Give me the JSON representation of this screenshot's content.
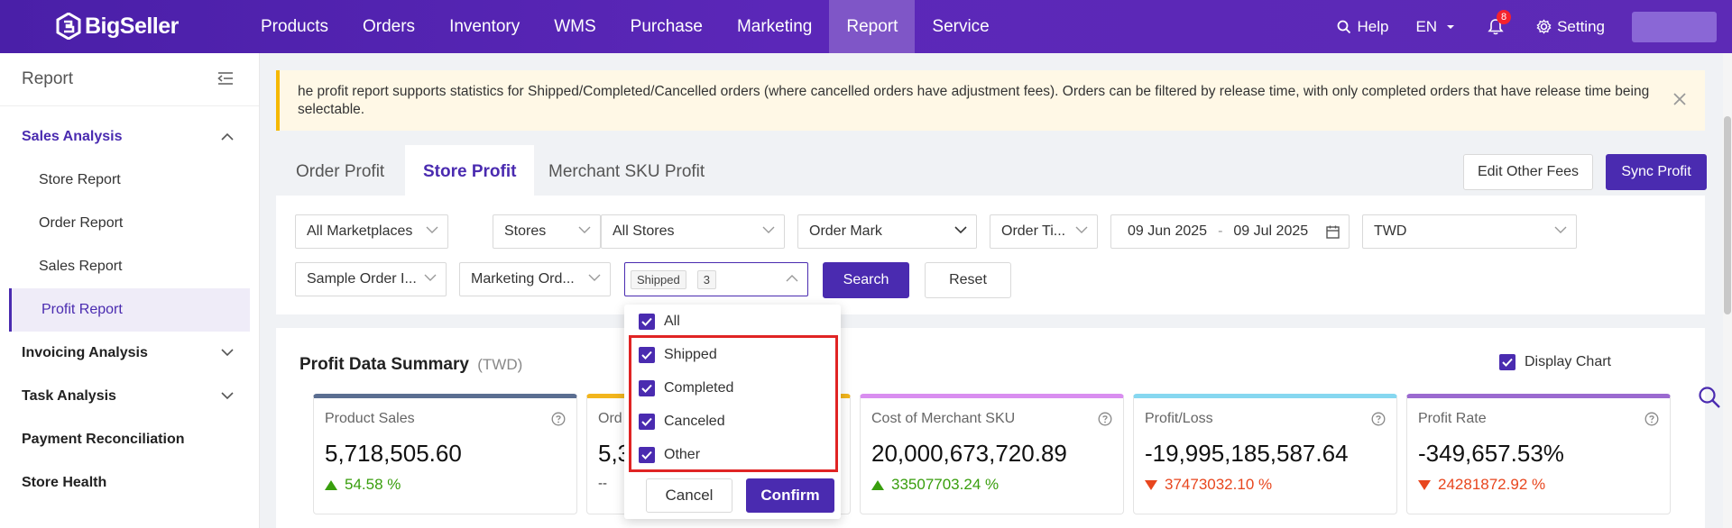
{
  "header": {
    "logo_text": "BigSeller",
    "nav": [
      {
        "label": "Products"
      },
      {
        "label": "Orders"
      },
      {
        "label": "Inventory"
      },
      {
        "label": "WMS"
      },
      {
        "label": "Purchase"
      },
      {
        "label": "Marketing"
      },
      {
        "label": "Report",
        "active": true
      },
      {
        "label": "Service"
      }
    ],
    "help_label": "Help",
    "lang_label": "EN",
    "notif_count": "8",
    "setting_label": "Setting"
  },
  "sidebar": {
    "title": "Report",
    "sales_group": "Sales Analysis",
    "sales_items": [
      "Store Report",
      "Order Report",
      "Sales Report",
      "Profit Report"
    ],
    "groups": [
      "Invoicing Analysis",
      "Task Analysis",
      "Payment Reconciliation",
      "Store Health"
    ]
  },
  "alert": {
    "text": "he profit report supports statistics for Shipped/Completed/Cancelled orders (where cancelled orders have adjustment fees). Orders can be filtered by release time, with only completed orders that have release time being selectable."
  },
  "tabs": [
    "Order Profit",
    "Store Profit",
    "Merchant SKU Profit"
  ],
  "actions": {
    "edit_fees": "Edit Other Fees",
    "sync_profit": "Sync Profit"
  },
  "filters": {
    "marketplaces": "All Marketplaces",
    "stores_type": "Stores",
    "stores": "All Stores",
    "order_mark": "Order Mark",
    "order_time": "Order Ti...",
    "date_from": "09 Jun 2025",
    "date_sep": "-",
    "date_to": "09 Jul 2025",
    "currency": "TWD",
    "sample_order": "Sample Order I...",
    "marketing_order": "Marketing Ord...",
    "status_tag": "Shipped",
    "status_count": "3",
    "search": "Search",
    "reset": "Reset"
  },
  "status_dropdown": {
    "options": [
      "All",
      "Shipped",
      "Completed",
      "Canceled",
      "Other"
    ],
    "cancel": "Cancel",
    "confirm": "Confirm"
  },
  "summary": {
    "title": "Profit Data Summary",
    "currency": "(TWD)",
    "display_chart": "Display Chart",
    "cards": [
      {
        "label": "Product Sales",
        "value": "5,718,505.60",
        "change": "54.58 %",
        "dir": "up",
        "color": "#5b6e91"
      },
      {
        "label": "Ord",
        "value": "5,3",
        "change": "--",
        "dir": "none",
        "color": "#f2b51d"
      },
      {
        "label": "Cost of Merchant SKU",
        "value": "20,000,673,720.89",
        "change": "33507703.24 %",
        "dir": "up",
        "color": "#d98ef0"
      },
      {
        "label": "Profit/Loss",
        "value": "-19,995,185,587.64",
        "change": "37473032.10 %",
        "dir": "down",
        "color": "#86d7f0"
      },
      {
        "label": "Profit Rate",
        "value": "-349,657.53%",
        "change": "24281872.92 %",
        "dir": "down",
        "color": "#9b6ad0"
      }
    ]
  }
}
